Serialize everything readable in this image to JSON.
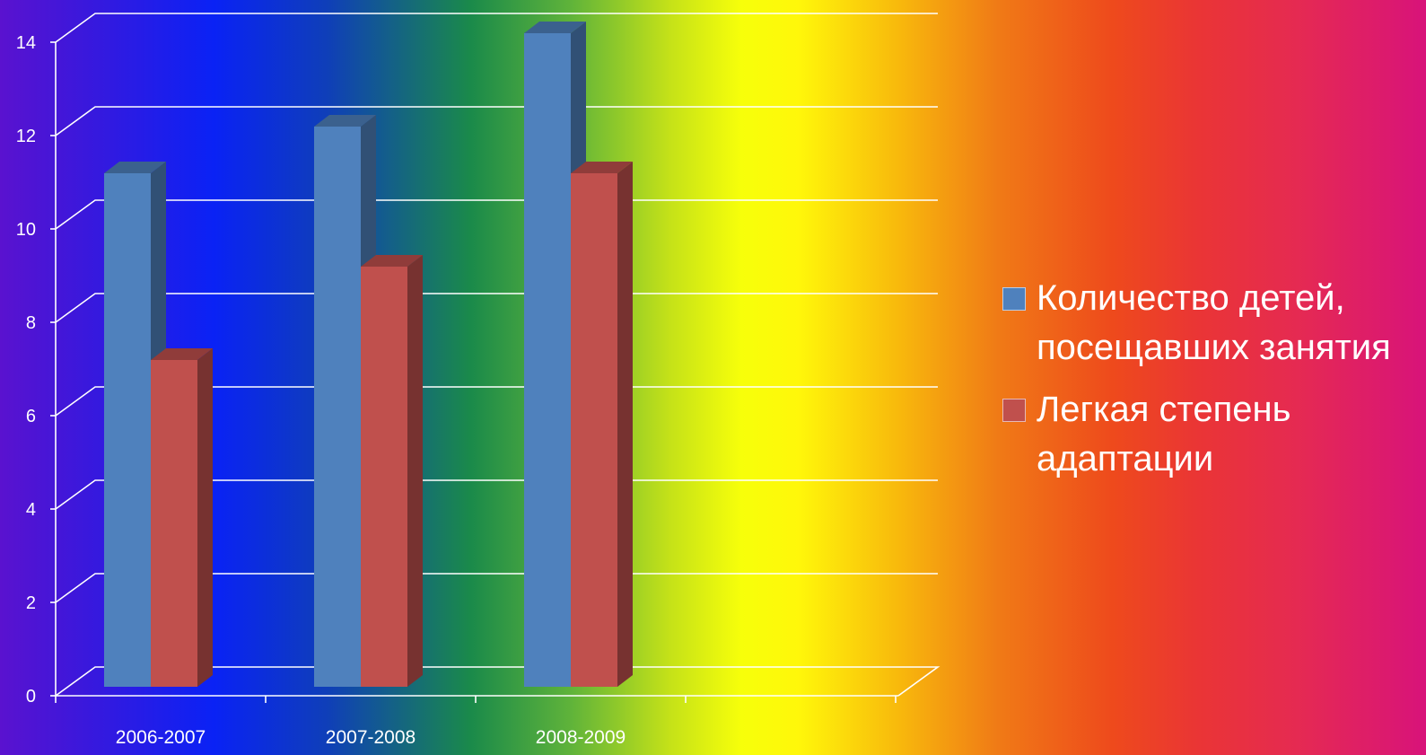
{
  "chart_data": {
    "type": "bar",
    "categories": [
      "2006-2007",
      "2007-2008",
      "2008-2009"
    ],
    "series": [
      {
        "name": "Количество детей, посещавших занятия",
        "values": [
          11,
          12,
          14
        ],
        "color": "#4f81bd"
      },
      {
        "name": "Легкая степень адаптации",
        "values": [
          7,
          9,
          11
        ],
        "color": "#c0504d"
      }
    ],
    "yticks": [
      "0",
      "2",
      "4",
      "6",
      "8",
      "10",
      "12",
      "14"
    ],
    "ylim": [
      0,
      14
    ],
    "grid": true,
    "legend_position": "right",
    "title": "",
    "xlabel": "",
    "ylabel": ""
  }
}
